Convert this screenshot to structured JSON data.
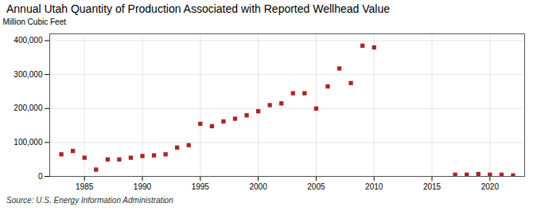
{
  "chart_data": {
    "type": "scatter",
    "title": "Annual Utah Quantity of Production Associated with Reported Wellhead Value",
    "ylabel": "Million Cubic Feet",
    "source": "Source: U.S. Energy Information Administration",
    "x": [
      1983,
      1984,
      1985,
      1986,
      1987,
      1988,
      1989,
      1990,
      1991,
      1992,
      1993,
      1994,
      1995,
      1996,
      1997,
      1998,
      1999,
      2000,
      2001,
      2002,
      2003,
      2004,
      2005,
      2006,
      2007,
      2008,
      2009,
      2010,
      2017,
      2018,
      2019,
      2020,
      2021,
      2022
    ],
    "values": [
      65000,
      75000,
      55000,
      20000,
      50000,
      50000,
      55000,
      60000,
      62000,
      65000,
      85000,
      92000,
      155000,
      148000,
      162000,
      170000,
      180000,
      192000,
      210000,
      215000,
      245000,
      245000,
      200000,
      265000,
      318000,
      275000,
      385000,
      380000,
      5000,
      5000,
      7000,
      5000,
      5000,
      3000
    ],
    "color": "#b22222",
    "marker": "square",
    "xlim": [
      1982,
      2023
    ],
    "xticks": [
      1985,
      1990,
      1995,
      2000,
      2005,
      2010,
      2015,
      2020
    ],
    "ylim": [
      0,
      420000
    ],
    "yticks": [
      0,
      {
        "value": 100000,
        "label": "100,000"
      },
      {
        "value": 200000,
        "label": "200,000"
      },
      {
        "value": 300000,
        "label": "300,000"
      },
      {
        "value": 400000,
        "label": "400,000"
      }
    ],
    "grid": true
  }
}
